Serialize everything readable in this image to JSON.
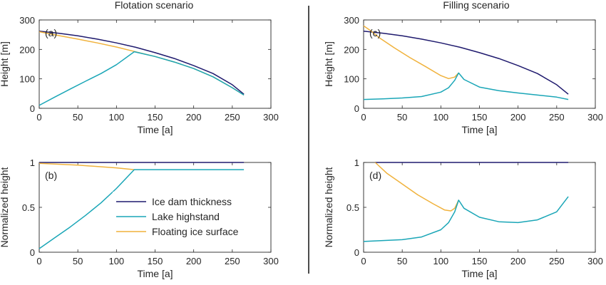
{
  "colors": {
    "ice_dam": "#1f1a6e",
    "lake": "#1aa6b7",
    "floating": "#f0b23c",
    "axis": "#262626",
    "divider": "#000000"
  },
  "column_titles": [
    "Flotation scenario",
    "Filling scenario"
  ],
  "legend": {
    "placement": "inside panel (b), right",
    "entries": [
      "Ice dam thickness",
      "Lake highstand",
      "Floating ice surface"
    ]
  },
  "chart_data": [
    {
      "type": "line",
      "panel": "(a)",
      "xlabel": "Time [a]",
      "ylabel": "Height [m]",
      "xlim": [
        0,
        300
      ],
      "ylim": [
        0,
        300
      ],
      "xticks": [
        0,
        50,
        100,
        150,
        200,
        250,
        300
      ],
      "yticks": [
        0,
        100,
        200,
        300
      ],
      "series": [
        {
          "name": "Ice dam thickness",
          "color_key": "ice_dam",
          "x": [
            0,
            25,
            50,
            75,
            100,
            125,
            150,
            175,
            200,
            225,
            250,
            265
          ],
          "y": [
            262,
            255,
            246,
            235,
            222,
            207,
            189,
            169,
            145,
            118,
            80,
            48
          ]
        },
        {
          "name": "Floating ice surface",
          "color_key": "floating",
          "x": [
            0,
            10,
            25,
            50,
            75,
            100,
            123,
            150,
            175,
            200,
            225,
            250,
            265
          ],
          "y": [
            260,
            255,
            247,
            235,
            222,
            208,
            193,
            176,
            157,
            135,
            107,
            70,
            45
          ]
        },
        {
          "name": "Lake highstand",
          "color_key": "lake",
          "x": [
            0,
            20,
            40,
            60,
            80,
            100,
            123,
            150,
            175,
            200,
            225,
            250,
            265
          ],
          "y": [
            10,
            38,
            65,
            92,
            118,
            148,
            192,
            176,
            157,
            135,
            107,
            70,
            45
          ]
        }
      ]
    },
    {
      "type": "line",
      "panel": "(b)",
      "xlabel": "Time [a]",
      "ylabel": "Normalized height",
      "xlim": [
        0,
        300
      ],
      "ylim": [
        0,
        1
      ],
      "xticks": [
        0,
        50,
        100,
        150,
        200,
        250,
        300
      ],
      "yticks": [
        0,
        0.5,
        1
      ],
      "series": [
        {
          "name": "Ice dam thickness",
          "color_key": "ice_dam",
          "x": [
            0,
            265
          ],
          "y": [
            1,
            1
          ]
        },
        {
          "name": "Floating ice surface",
          "color_key": "floating",
          "x": [
            0,
            50,
            100,
            123
          ],
          "y": [
            0.99,
            0.97,
            0.94,
            0.92
          ]
        },
        {
          "name": "Lake highstand",
          "color_key": "lake",
          "x": [
            0,
            20,
            40,
            60,
            80,
            100,
            123,
            150,
            200,
            265
          ],
          "y": [
            0.04,
            0.16,
            0.28,
            0.41,
            0.55,
            0.71,
            0.92,
            0.92,
            0.92,
            0.92
          ]
        }
      ]
    },
    {
      "type": "line",
      "panel": "(c)",
      "xlabel": "Time [a]",
      "ylabel": "Height [m]",
      "xlim": [
        0,
        300
      ],
      "ylim": [
        0,
        300
      ],
      "xticks": [
        0,
        50,
        100,
        150,
        200,
        250,
        300
      ],
      "yticks": [
        0,
        100,
        200,
        300
      ],
      "series": [
        {
          "name": "Ice dam thickness",
          "color_key": "ice_dam",
          "x": [
            0,
            25,
            50,
            75,
            100,
            125,
            150,
            175,
            200,
            225,
            250,
            265
          ],
          "y": [
            262,
            255,
            246,
            235,
            222,
            207,
            189,
            169,
            145,
            118,
            80,
            48
          ]
        },
        {
          "name": "Floating ice surface",
          "color_key": "floating",
          "x": [
            0,
            10,
            20,
            40,
            60,
            80,
            100,
            110,
            118,
            123
          ],
          "y": [
            280,
            262,
            240,
            205,
            172,
            142,
            111,
            101,
            106,
            120
          ]
        },
        {
          "name": "Lake highstand",
          "color_key": "lake",
          "x": [
            0,
            25,
            50,
            75,
            100,
            110,
            118,
            123,
            130,
            150,
            175,
            200,
            225,
            250,
            265
          ],
          "y": [
            30,
            32,
            35,
            40,
            55,
            70,
            95,
            120,
            98,
            72,
            60,
            52,
            45,
            38,
            30
          ]
        }
      ]
    },
    {
      "type": "line",
      "panel": "(d)",
      "xlabel": "Time [a]",
      "ylabel": "Normalized height",
      "xlim": [
        0,
        300
      ],
      "ylim": [
        0,
        1
      ],
      "xticks": [
        0,
        50,
        100,
        150,
        200,
        250,
        300
      ],
      "yticks": [
        0,
        0.5,
        1
      ],
      "series": [
        {
          "name": "Ice dam thickness",
          "color_key": "ice_dam",
          "x": [
            15,
            265
          ],
          "y": [
            1,
            1
          ]
        },
        {
          "name": "Floating ice surface",
          "color_key": "floating",
          "x": [
            15,
            30,
            50,
            70,
            90,
            105,
            113,
            118,
            123
          ],
          "y": [
            1,
            0.88,
            0.76,
            0.64,
            0.54,
            0.47,
            0.46,
            0.49,
            0.58
          ]
        },
        {
          "name": "Lake highstand",
          "color_key": "lake",
          "x": [
            0,
            25,
            50,
            75,
            100,
            110,
            118,
            123,
            130,
            150,
            175,
            200,
            225,
            250,
            265
          ],
          "y": [
            0.12,
            0.13,
            0.14,
            0.17,
            0.25,
            0.33,
            0.45,
            0.58,
            0.49,
            0.39,
            0.34,
            0.33,
            0.36,
            0.45,
            0.62
          ]
        }
      ]
    }
  ]
}
